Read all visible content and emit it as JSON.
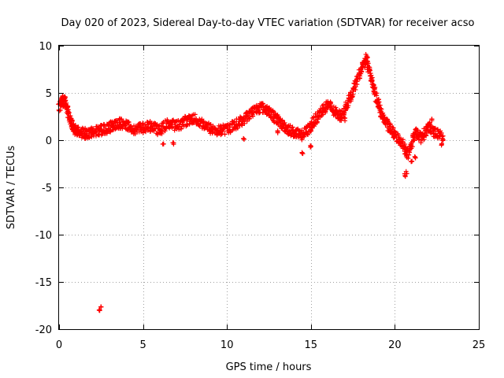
{
  "chart_data": {
    "type": "scatter",
    "title": "Day 020 of 2023, Sidereal Day-to-day VTEC variation (SDTVAR) for receiver acso",
    "xlabel": "GPS time / hours",
    "ylabel": "SDTVAR / TECUs",
    "xlim": [
      0,
      25
    ],
    "ylim": [
      -20,
      10
    ],
    "xticks": [
      0,
      5,
      10,
      15,
      20,
      25
    ],
    "yticks": [
      -20,
      -15,
      -10,
      -5,
      0,
      5,
      10
    ],
    "grid": true,
    "marker": "+",
    "series": [
      {
        "name": "SDTVAR",
        "color": "#ff0000",
        "trend": [
          [
            0.0,
            3.5
          ],
          [
            0.2,
            4.2
          ],
          [
            0.4,
            4.0
          ],
          [
            0.6,
            2.5
          ],
          [
            0.8,
            1.5
          ],
          [
            1.0,
            1.0
          ],
          [
            1.3,
            0.8
          ],
          [
            1.6,
            0.7
          ],
          [
            2.0,
            0.8
          ],
          [
            2.4,
            1.0
          ],
          [
            2.8,
            1.2
          ],
          [
            3.2,
            1.5
          ],
          [
            3.6,
            1.8
          ],
          [
            4.0,
            1.5
          ],
          [
            4.5,
            1.2
          ],
          [
            5.0,
            1.3
          ],
          [
            5.5,
            1.5
          ],
          [
            6.0,
            1.0
          ],
          [
            6.5,
            1.8
          ],
          [
            7.0,
            1.5
          ],
          [
            7.5,
            2.0
          ],
          [
            8.0,
            2.3
          ],
          [
            8.5,
            1.8
          ],
          [
            9.0,
            1.2
          ],
          [
            9.5,
            1.0
          ],
          [
            10.0,
            1.2
          ],
          [
            10.5,
            1.6
          ],
          [
            11.0,
            2.2
          ],
          [
            11.5,
            3.0
          ],
          [
            12.0,
            3.5
          ],
          [
            12.4,
            3.2
          ],
          [
            12.8,
            2.5
          ],
          [
            13.2,
            1.8
          ],
          [
            13.6,
            1.2
          ],
          [
            14.0,
            0.8
          ],
          [
            14.4,
            0.5
          ],
          [
            14.8,
            1.0
          ],
          [
            15.2,
            2.0
          ],
          [
            15.6,
            3.0
          ],
          [
            16.0,
            3.8
          ],
          [
            16.4,
            3.0
          ],
          [
            16.8,
            2.5
          ],
          [
            17.2,
            4.0
          ],
          [
            17.6,
            5.5
          ],
          [
            18.0,
            7.5
          ],
          [
            18.3,
            8.6
          ],
          [
            18.6,
            6.5
          ],
          [
            18.9,
            4.5
          ],
          [
            19.2,
            2.8
          ],
          [
            19.6,
            1.5
          ],
          [
            20.0,
            0.5
          ],
          [
            20.4,
            -0.2
          ],
          [
            20.8,
            -1.5
          ],
          [
            21.2,
            0.8
          ],
          [
            21.6,
            0.2
          ],
          [
            22.0,
            1.5
          ],
          [
            22.4,
            0.8
          ],
          [
            22.9,
            0.3
          ]
        ],
        "outliers": [
          [
            2.4,
            -18.0
          ],
          [
            2.5,
            -17.7
          ],
          [
            20.6,
            -3.7
          ],
          [
            20.7,
            -3.4
          ],
          [
            21.0,
            -2.2
          ],
          [
            21.2,
            -1.8
          ],
          [
            14.5,
            -1.4
          ],
          [
            15.0,
            -0.6
          ],
          [
            6.2,
            -0.5
          ],
          [
            6.8,
            -0.3
          ],
          [
            11.0,
            0.2
          ],
          [
            13.0,
            0.9
          ],
          [
            17.0,
            2.2
          ],
          [
            22.8,
            -0.5
          ],
          [
            22.2,
            2.1
          ]
        ]
      }
    ]
  }
}
